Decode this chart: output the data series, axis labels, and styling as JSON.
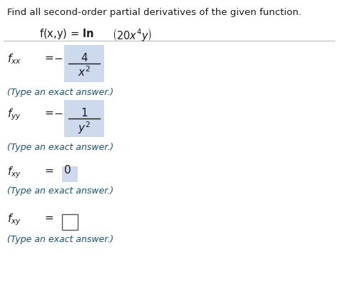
{
  "title": "Find all second-order partial derivatives of the given function.",
  "bg_color": "#ffffff",
  "text_color": "#1a1a1a",
  "blue_color": "#1a5276",
  "highlight_color": "#cdd9ed",
  "type_answer_text": "(Type an exact answer.)"
}
